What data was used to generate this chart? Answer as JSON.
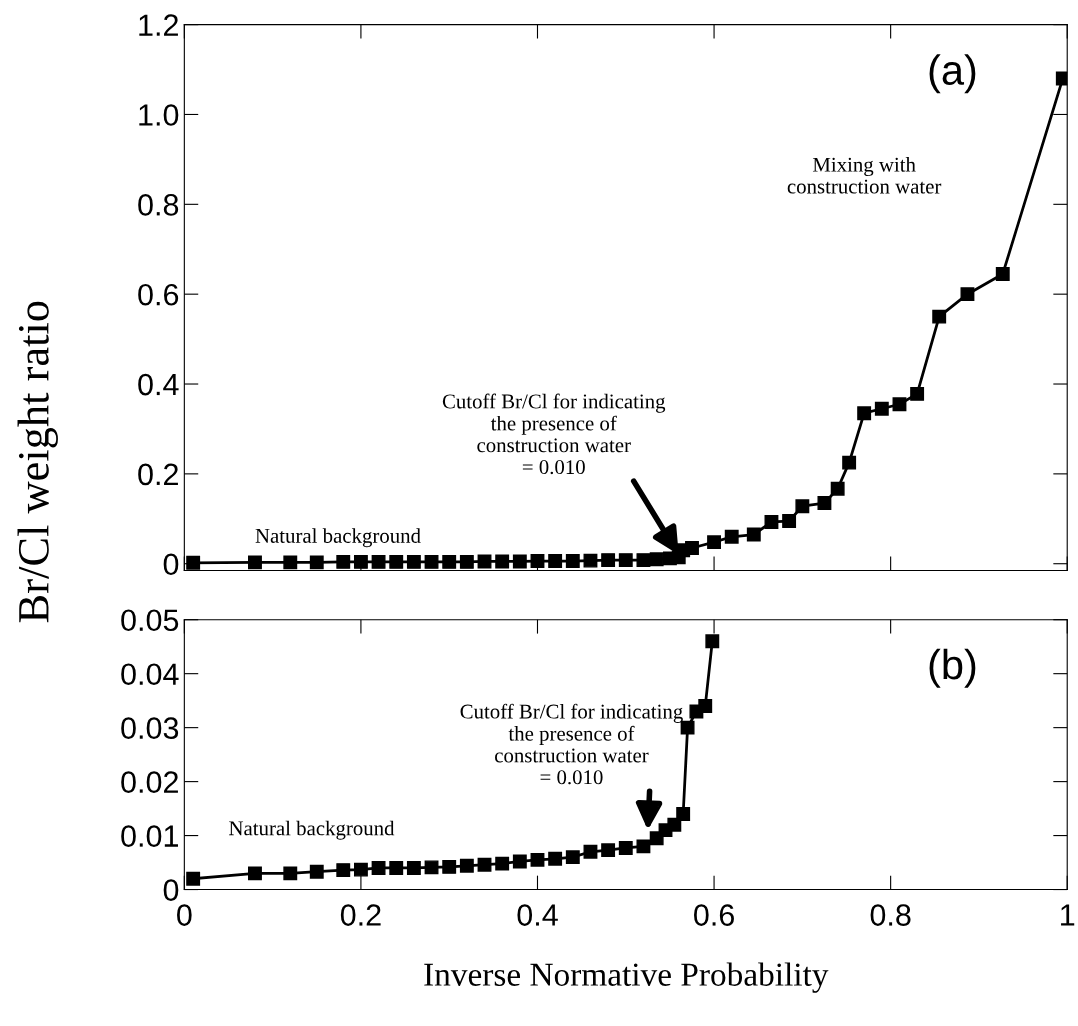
{
  "chart_data": [
    {
      "type": "line",
      "ylabel": "Br/Cl weight ratio",
      "marker": "square",
      "line_style": "solid",
      "grid": false,
      "legend": false,
      "tick_labels": "y",
      "xlim": [
        0,
        1
      ],
      "xticks": [
        0,
        0.2,
        0.4,
        0.6,
        0.8,
        1
      ],
      "ylim": [
        -0.015,
        1.2
      ],
      "yticks": [
        0,
        0.2,
        0.4,
        0.6,
        0.8,
        {
          "value": 1.0,
          "label": "1.0"
        },
        1.2
      ],
      "x": [
        0.01,
        0.08,
        0.12,
        0.15,
        0.18,
        0.2,
        0.22,
        0.24,
        0.26,
        0.28,
        0.3,
        0.32,
        0.34,
        0.36,
        0.38,
        0.4,
        0.42,
        0.44,
        0.46,
        0.48,
        0.5,
        0.52,
        0.535,
        0.55,
        0.56,
        0.565,
        0.575,
        0.6,
        0.62,
        0.645,
        0.665,
        0.685,
        0.7,
        0.725,
        0.74,
        0.753,
        0.77,
        0.79,
        0.81,
        0.83,
        0.855,
        0.887,
        0.927,
        0.995
      ],
      "series": [
        {
          "color": "#000000",
          "values": [
            0.002,
            0.003,
            0.003,
            0.003,
            0.004,
            0.004,
            0.004,
            0.004,
            0.004,
            0.004,
            0.004,
            0.004,
            0.005,
            0.005,
            0.005,
            0.006,
            0.006,
            0.006,
            0.007,
            0.008,
            0.008,
            0.008,
            0.01,
            0.012,
            0.014,
            0.03,
            0.035,
            0.048,
            0.06,
            0.065,
            0.093,
            0.095,
            0.128,
            0.135,
            0.167,
            0.225,
            0.335,
            0.345,
            0.355,
            0.378,
            0.55,
            0.6,
            0.645,
            1.08
          ]
        }
      ],
      "annotations": [
        {
          "text": "Cutoff Br/Cl for indicating\nthe presence of\nconstruction water\n= 0.010",
          "x": 0.56,
          "y": 0.02
        },
        "Natural background",
        "Mixing with\nconstruction water",
        "(a)"
      ]
    },
    {
      "type": "line",
      "xlabel": "Inverse Normative Probability",
      "marker": "square",
      "line_style": "solid",
      "grid": false,
      "legend": false,
      "xlim": [
        0,
        1
      ],
      "xticks": [
        0,
        0.2,
        0.4,
        0.6,
        0.8,
        1
      ],
      "ylim": [
        0,
        0.05
      ],
      "yticks": [
        0,
        0.01,
        0.02,
        0.03,
        0.04,
        0.05
      ],
      "x": [
        0.01,
        0.08,
        0.12,
        0.15,
        0.18,
        0.2,
        0.22,
        0.24,
        0.26,
        0.28,
        0.3,
        0.32,
        0.34,
        0.36,
        0.38,
        0.4,
        0.42,
        0.44,
        0.46,
        0.48,
        0.5,
        0.52,
        0.535,
        0.545,
        0.555,
        0.565,
        0.57,
        0.58,
        0.59,
        0.598
      ],
      "series": [
        {
          "color": "#000000",
          "values": [
            0.002,
            0.003,
            0.003,
            0.0033,
            0.0036,
            0.0037,
            0.004,
            0.004,
            0.004,
            0.0041,
            0.0042,
            0.0044,
            0.0046,
            0.0048,
            0.0052,
            0.0055,
            0.0057,
            0.006,
            0.007,
            0.0073,
            0.0077,
            0.008,
            0.0095,
            0.011,
            0.012,
            0.014,
            0.03,
            0.033,
            0.034,
            0.046
          ]
        }
      ],
      "annotations": [
        {
          "text": "Cutoff Br/Cl for indicating\nthe presence of\nconstruction water\n= 0.010",
          "x": 0.525,
          "y": 0.011
        },
        "Natural background",
        "(b)"
      ]
    }
  ]
}
